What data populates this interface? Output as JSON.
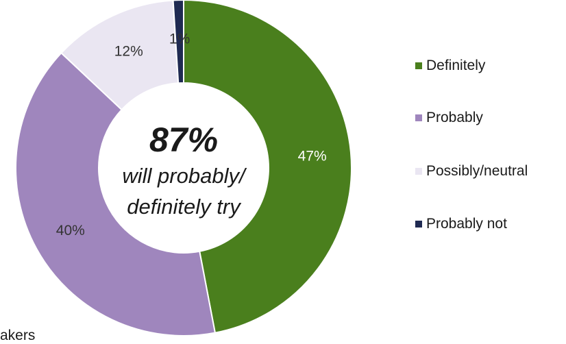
{
  "chart_data": {
    "type": "pie",
    "donut": true,
    "categories": [
      "Definitely",
      "Probably",
      "Possibly/neutral",
      "Probably not"
    ],
    "values": [
      47,
      40,
      12,
      1
    ],
    "value_labels": [
      "47%",
      "40%",
      "12%",
      "1%"
    ],
    "colors": [
      "#4a7f1d",
      "#9f86bd",
      "#eae6f2",
      "#1f2a52"
    ],
    "label_colors": [
      "#ffffff",
      "#333333",
      "#333333",
      "#333333"
    ],
    "legend_position": "right",
    "center_text": {
      "headline": "87%",
      "line1": "will probably/",
      "line2": "definitely try"
    }
  },
  "cutoff_text": "akers"
}
